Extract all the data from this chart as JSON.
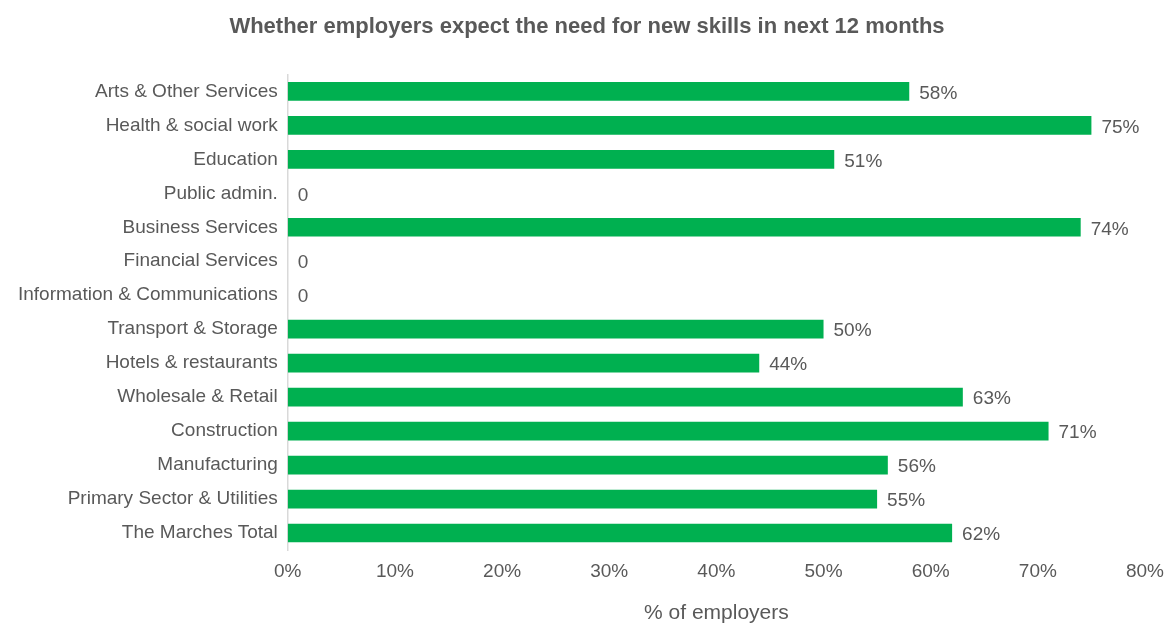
{
  "chart_data": {
    "type": "bar",
    "orientation": "horizontal",
    "title": "Whether employers expect the need for new skills in next 12 months",
    "xlabel": "% of employers",
    "categories": [
      "Arts & Other Services",
      "Health & social work",
      "Education",
      "Public admin.",
      "Business Services",
      "Financial Services",
      "Information & Communications",
      "Transport & Storage",
      "Hotels & restaurants",
      "Wholesale & Retail",
      "Construction",
      "Manufacturing",
      "Primary Sector & Utilities",
      "The Marches Total"
    ],
    "values": [
      58,
      75,
      51,
      0,
      74,
      0,
      0,
      50,
      44,
      63,
      71,
      56,
      55,
      62
    ],
    "value_labels": [
      "58%",
      "75%",
      "51%",
      "0",
      "74%",
      "0",
      "0",
      "50%",
      "44%",
      "63%",
      "71%",
      "56%",
      "55%",
      "62%"
    ],
    "color": "#00b050",
    "xlim": [
      0,
      80
    ],
    "xticks": [
      {
        "value": 0,
        "label": "0%"
      },
      {
        "value": 10,
        "label": "10%"
      },
      {
        "value": 20,
        "label": "20%"
      },
      {
        "value": 30,
        "label": "30%"
      },
      {
        "value": 40,
        "label": "40%"
      },
      {
        "value": 50,
        "label": "50%"
      },
      {
        "value": 60,
        "label": "60%"
      },
      {
        "value": 70,
        "label": "70%"
      },
      {
        "value": 80,
        "label": "80%"
      }
    ]
  }
}
